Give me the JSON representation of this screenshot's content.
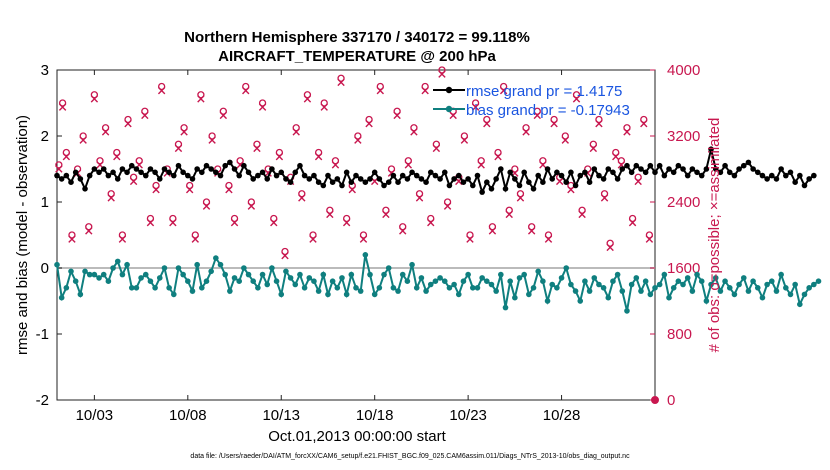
{
  "chart_data": {
    "type": "line",
    "title_line1": "Northern Hemisphere 337170 / 340172 = 99.118%",
    "title_line2": "AIRCRAFT_TEMPERATURE @ 200 hPa",
    "xlabel": "Oct.01,2013 00:00:00 start",
    "ylabel_left": "rmse and bias (model - observation)",
    "ylabel_right": "# of obs: o=possible; ×=assimilated",
    "xlim": [
      1,
      33
    ],
    "ylim_left": [
      -2,
      3
    ],
    "ylim_right": [
      0,
      4000
    ],
    "x_ticks": [
      3,
      8,
      13,
      18,
      23,
      28
    ],
    "x_tick_labels": [
      "10/03",
      "10/08",
      "10/13",
      "10/18",
      "10/23",
      "10/28"
    ],
    "y_ticks_left": [
      "-2",
      "-1",
      "0",
      "1",
      "2",
      "3"
    ],
    "y_ticks_right": [
      "0",
      "800",
      "1600",
      "2400",
      "3200",
      "4000"
    ],
    "zero_line": 0,
    "legend": [
      {
        "label": "rmse grand pr = 1.4175",
        "color": "#000000",
        "marker": "dot"
      },
      {
        "label": "bias grand pr = -0.17943",
        "color": "#0f7f7f",
        "marker": "dot"
      }
    ],
    "series": [
      {
        "name": "rmse",
        "color": "#000000",
        "axis": "left",
        "x0": 1.0,
        "dx": 0.25,
        "values": [
          1.4,
          1.35,
          1.4,
          1.3,
          1.45,
          1.35,
          1.2,
          1.4,
          1.5,
          1.45,
          1.5,
          1.4,
          1.45,
          1.35,
          1.5,
          1.45,
          1.55,
          1.5,
          1.45,
          1.4,
          1.5,
          1.45,
          1.35,
          1.5,
          1.45,
          1.4,
          1.55,
          1.45,
          1.4,
          1.35,
          1.5,
          1.45,
          1.55,
          1.5,
          1.45,
          1.4,
          1.55,
          1.6,
          1.5,
          1.4,
          1.55,
          1.45,
          1.35,
          1.4,
          1.45,
          1.35,
          1.5,
          1.4,
          1.45,
          1.35,
          1.3,
          1.45,
          1.55,
          1.4,
          1.35,
          1.4,
          1.3,
          1.25,
          1.4,
          1.3,
          1.35,
          1.25,
          1.45,
          1.3,
          1.4,
          1.35,
          1.3,
          1.35,
          1.45,
          1.35,
          1.25,
          1.3,
          1.4,
          1.3,
          1.4,
          1.35,
          1.45,
          1.4,
          1.35,
          1.3,
          1.45,
          1.4,
          1.35,
          1.45,
          1.25,
          1.35,
          1.4,
          1.3,
          1.35,
          1.25,
          1.4,
          1.15,
          1.3,
          1.2,
          1.35,
          1.5,
          1.2,
          1.45,
          1.35,
          1.25,
          1.45,
          1.3,
          1.2,
          1.4,
          1.3,
          1.5,
          1.35,
          1.45,
          1.4,
          1.3,
          1.45,
          1.25,
          1.4,
          1.45,
          1.3,
          1.5,
          1.4,
          1.35,
          1.5,
          1.45,
          1.35,
          1.5,
          1.55,
          1.45,
          1.55,
          1.5,
          1.45,
          1.55,
          1.45,
          1.55,
          1.4,
          1.5,
          1.45,
          1.55,
          1.5,
          1.4,
          1.5,
          1.45,
          1.4,
          1.5,
          1.8,
          1.5,
          1.45,
          1.55,
          1.45,
          1.4,
          1.5,
          1.55,
          1.6,
          1.5,
          1.45,
          1.4,
          1.35,
          1.4,
          1.35,
          1.5,
          1.4,
          1.45,
          1.3,
          1.4,
          1.25,
          1.35,
          1.4
        ]
      },
      {
        "name": "bias",
        "color": "#0f7f7f",
        "axis": "left",
        "x0": 1.0,
        "dx": 0.25,
        "values": [
          0.05,
          -0.45,
          -0.3,
          -0.05,
          -0.2,
          -0.4,
          -0.05,
          -0.1,
          -0.1,
          -0.15,
          -0.1,
          -0.2,
          0.0,
          0.1,
          -0.1,
          0.05,
          -0.3,
          -0.3,
          -0.15,
          -0.1,
          -0.2,
          -0.3,
          -0.15,
          0.0,
          -0.3,
          -0.4,
          0.0,
          -0.1,
          -0.2,
          -0.35,
          0.05,
          -0.3,
          -0.2,
          -0.05,
          0.15,
          0.05,
          -0.1,
          -0.35,
          -0.15,
          -0.2,
          0.0,
          -0.1,
          -0.2,
          -0.3,
          -0.1,
          -0.25,
          0.0,
          -0.2,
          -0.4,
          -0.05,
          -0.15,
          -0.25,
          -0.1,
          -0.3,
          -0.15,
          -0.2,
          -0.35,
          -0.1,
          -0.4,
          -0.2,
          -0.3,
          -0.15,
          -0.4,
          -0.1,
          -0.3,
          -0.35,
          0.2,
          -0.1,
          -0.4,
          -0.3,
          -0.1,
          0.0,
          -0.3,
          -0.35,
          -0.1,
          -0.2,
          0.05,
          -0.3,
          -0.15,
          -0.35,
          -0.25,
          -0.2,
          -0.15,
          -0.2,
          -0.3,
          -0.25,
          -0.4,
          -0.2,
          -0.1,
          -0.3,
          -0.3,
          -0.15,
          -0.2,
          -0.25,
          -0.35,
          -0.1,
          -0.6,
          -0.2,
          -0.45,
          -0.15,
          -0.1,
          -0.4,
          -0.3,
          -0.05,
          -0.2,
          -0.5,
          -0.25,
          -0.3,
          -0.15,
          0.0,
          -0.25,
          -0.35,
          -0.5,
          -0.2,
          -0.35,
          -0.15,
          -0.25,
          -0.3,
          -0.45,
          -0.2,
          -0.1,
          -0.35,
          -0.65,
          -0.25,
          -0.15,
          -0.35,
          -0.2,
          -0.4,
          -0.3,
          -0.25,
          -0.1,
          -0.45,
          -0.3,
          -0.2,
          -0.25,
          -0.15,
          -0.35,
          -0.1,
          -0.2,
          -0.5,
          -0.25,
          -0.15,
          -0.35,
          -0.2,
          -0.3,
          -0.4,
          -0.25,
          -0.15,
          -0.35,
          -0.2,
          -0.3,
          -0.45,
          -0.25,
          -0.2,
          -0.35,
          -0.1,
          -0.3,
          -0.4,
          -0.25,
          -0.55,
          -0.4,
          -0.3,
          -0.25,
          -0.2
        ]
      },
      {
        "name": "possible",
        "color": "#c8174f",
        "axis": "right",
        "marker": "circle",
        "x": [
          1.1,
          1.3,
          1.5,
          1.8,
          2.1,
          2.4,
          2.7,
          3.0,
          3.3,
          3.6,
          3.9,
          4.2,
          4.5,
          4.8,
          5.1,
          5.4,
          5.7,
          6.0,
          6.3,
          6.6,
          6.9,
          7.2,
          7.5,
          7.8,
          8.1,
          8.4,
          8.7,
          9.0,
          9.3,
          9.6,
          9.9,
          10.2,
          10.5,
          10.8,
          11.1,
          11.4,
          11.7,
          12.0,
          12.3,
          12.6,
          12.9,
          13.2,
          13.5,
          13.8,
          14.1,
          14.4,
          14.7,
          15.0,
          15.3,
          15.6,
          15.9,
          16.2,
          16.5,
          16.8,
          17.1,
          17.4,
          17.7,
          18.0,
          18.3,
          18.6,
          18.9,
          19.2,
          19.5,
          19.8,
          20.1,
          20.4,
          20.7,
          21.0,
          21.3,
          21.6,
          21.9,
          22.2,
          22.5,
          22.8,
          23.1,
          23.4,
          23.7,
          24.0,
          24.3,
          24.6,
          24.9,
          25.2,
          25.5,
          25.8,
          26.1,
          26.4,
          26.7,
          27.0,
          27.3,
          27.6,
          27.9,
          28.2,
          28.5,
          28.8,
          29.1,
          29.4,
          29.7,
          30.0,
          30.3,
          30.6,
          30.9,
          31.2,
          31.5,
          31.8,
          32.1,
          32.4,
          32.7
        ],
        "values": [
          2850,
          3600,
          3000,
          2000,
          2800,
          3200,
          2100,
          3700,
          2900,
          3300,
          2500,
          3000,
          2000,
          3400,
          2700,
          2900,
          3500,
          2200,
          2600,
          3800,
          2800,
          2200,
          3100,
          3300,
          2600,
          2000,
          3700,
          2400,
          3200,
          2800,
          3500,
          2600,
          2200,
          2900,
          3800,
          2400,
          3100,
          3600,
          2800,
          2200,
          3000,
          1800,
          2700,
          3300,
          2500,
          3700,
          2000,
          3000,
          3600,
          2300,
          2900,
          3900,
          2200,
          2600,
          3200,
          2000,
          3400,
          2700,
          3800,
          2300,
          2800,
          3500,
          2100,
          2900,
          3300,
          2500,
          3800,
          2200,
          3100,
          4000,
          2400,
          3500,
          2700,
          3200,
          2000,
          3600,
          2900,
          3400,
          2100,
          3000,
          3800,
          2300,
          2800,
          2500,
          3300,
          2100,
          3500,
          2900,
          2000,
          3400,
          2700,
          3200,
          2600,
          3700,
          2300,
          2800,
          3100,
          3400,
          2500,
          1900,
          3000,
          2900,
          3300,
          2200,
          2700,
          3400,
          2000
        ]
      },
      {
        "name": "assimilated",
        "color": "#c8174f",
        "axis": "right",
        "marker": "cross",
        "x": [
          1.1,
          1.3,
          1.5,
          1.8,
          2.1,
          2.4,
          2.7,
          3.0,
          3.3,
          3.6,
          3.9,
          4.2,
          4.5,
          4.8,
          5.1,
          5.4,
          5.7,
          6.0,
          6.3,
          6.6,
          6.9,
          7.2,
          7.5,
          7.8,
          8.1,
          8.4,
          8.7,
          9.0,
          9.3,
          9.6,
          9.9,
          10.2,
          10.5,
          10.8,
          11.1,
          11.4,
          11.7,
          12.0,
          12.3,
          12.6,
          12.9,
          13.2,
          13.5,
          13.8,
          14.1,
          14.4,
          14.7,
          15.0,
          15.3,
          15.6,
          15.9,
          16.2,
          16.5,
          16.8,
          17.1,
          17.4,
          17.7,
          18.0,
          18.3,
          18.6,
          18.9,
          19.2,
          19.5,
          19.8,
          20.1,
          20.4,
          20.7,
          21.0,
          21.3,
          21.6,
          21.9,
          22.2,
          22.5,
          22.8,
          23.1,
          23.4,
          23.7,
          24.0,
          24.3,
          24.6,
          24.9,
          25.2,
          25.5,
          25.8,
          26.1,
          26.4,
          26.7,
          27.0,
          27.3,
          27.6,
          27.9,
          28.2,
          28.5,
          28.8,
          29.1,
          29.4,
          29.7,
          30.0,
          30.3,
          30.6,
          30.9,
          31.2,
          31.5,
          31.8,
          32.1,
          32.4,
          32.7
        ],
        "values": [
          2800,
          3550,
          2950,
          1950,
          2750,
          3150,
          2050,
          3650,
          2850,
          3250,
          2450,
          2950,
          1950,
          3350,
          2650,
          2850,
          3450,
          2150,
          2550,
          3750,
          2750,
          2150,
          3050,
          3250,
          2550,
          1950,
          3650,
          2350,
          3150,
          2750,
          3450,
          2550,
          2150,
          2850,
          3750,
          2350,
          3050,
          3550,
          2750,
          2150,
          2950,
          1750,
          2650,
          3250,
          2450,
          3650,
          1950,
          2950,
          3550,
          2250,
          2850,
          3850,
          2150,
          2550,
          3150,
          1950,
          3350,
          2650,
          3750,
          2250,
          2750,
          3450,
          2050,
          2850,
          3250,
          2450,
          3750,
          2150,
          3050,
          3950,
          2350,
          3450,
          2650,
          3150,
          1950,
          3550,
          2850,
          3350,
          2050,
          2950,
          3750,
          2250,
          2750,
          2450,
          3250,
          2050,
          3450,
          2850,
          1950,
          3350,
          2650,
          3150,
          2550,
          3650,
          2250,
          2750,
          3050,
          3350,
          2450,
          1850,
          2950,
          2850,
          3250,
          2150,
          2650,
          3350,
          1950
        ]
      }
    ],
    "footer": "data file: /Users/raeder/DAI/ATM_forcXX/CAM6_setup/f.e21.FHIST_BGC.f09_025.CAM6assim.011/Diags_NTrS_2013-10/obs_diag_output.nc"
  }
}
